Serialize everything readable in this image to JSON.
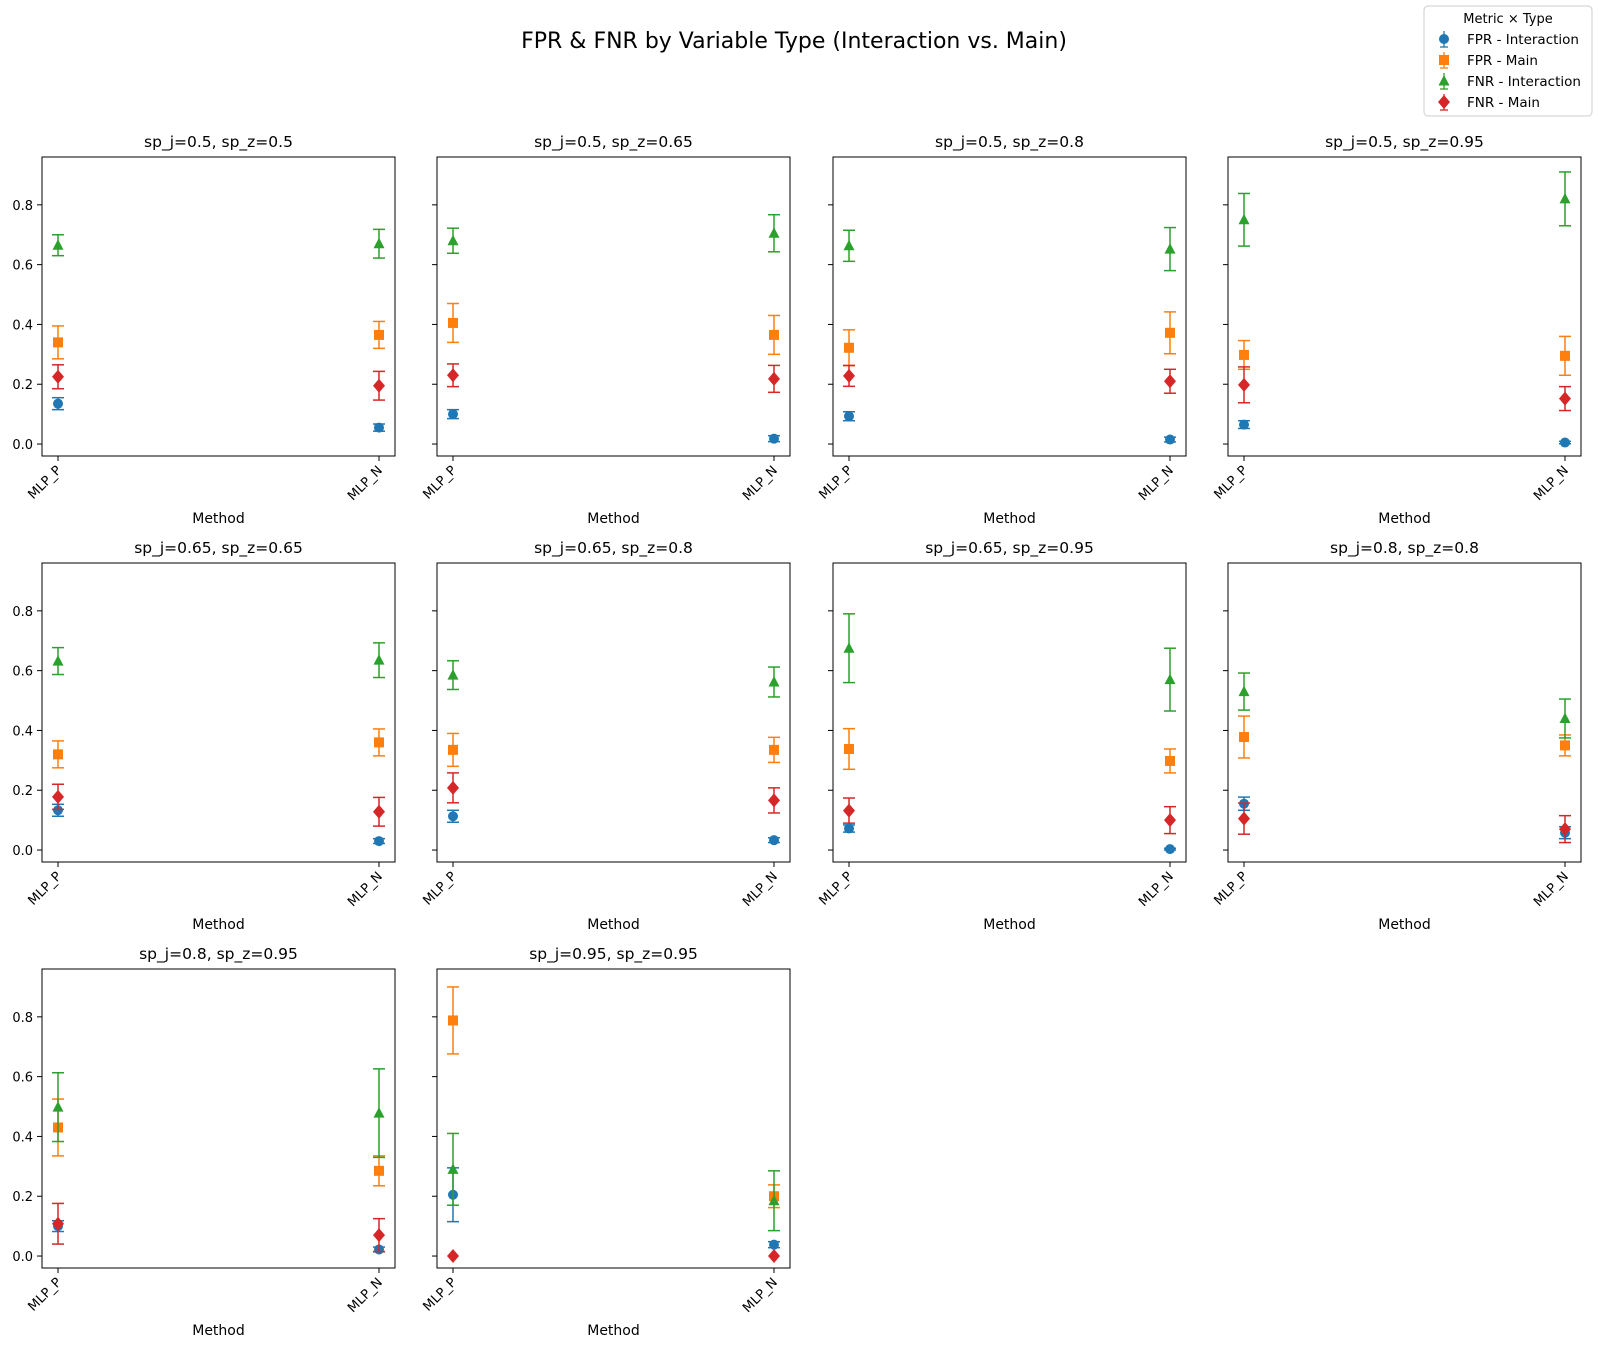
{
  "figure": {
    "title": "FPR & FNR by Variable Type (Interaction vs. Main)",
    "legend": {
      "title": "Metric × Type",
      "placement": "top-right",
      "entries": [
        {
          "label": "FPR - Interaction",
          "color": "#1f77b4",
          "marker": "circle"
        },
        {
          "label": "FPR - Main",
          "color": "#ff7f0e",
          "marker": "square"
        },
        {
          "label": "FNR - Interaction",
          "color": "#2ca02c",
          "marker": "triangle"
        },
        {
          "label": "FNR - Main",
          "color": "#d62728",
          "marker": "diamond"
        }
      ]
    }
  },
  "chart_data": [
    {
      "type": "scatter",
      "title": "sp_j=0.5, sp_z=0.5",
      "xlabel": "Method",
      "categories": [
        "MLP_P",
        "MLP_N"
      ],
      "ylim": [
        -0.04,
        0.96
      ],
      "yticks": [
        0.0,
        0.2,
        0.4,
        0.6,
        0.8
      ],
      "series": [
        {
          "name": "FPR - Interaction",
          "values": [
            0.135,
            0.055
          ],
          "err": [
            0.02,
            0.012
          ]
        },
        {
          "name": "FPR - Main",
          "values": [
            0.34,
            0.365
          ],
          "err": [
            0.055,
            0.045
          ]
        },
        {
          "name": "FNR - Interaction",
          "values": [
            0.665,
            0.67
          ],
          "err": [
            0.035,
            0.048
          ]
        },
        {
          "name": "FNR - Main",
          "values": [
            0.225,
            0.195
          ],
          "err": [
            0.04,
            0.048
          ]
        }
      ]
    },
    {
      "type": "scatter",
      "title": "sp_j=0.5, sp_z=0.65",
      "xlabel": "Method",
      "categories": [
        "MLP_P",
        "MLP_N"
      ],
      "ylim": [
        -0.04,
        0.96
      ],
      "yticks": [
        0.0,
        0.2,
        0.4,
        0.6,
        0.8
      ],
      "series": [
        {
          "name": "FPR - Interaction",
          "values": [
            0.1,
            0.018
          ],
          "err": [
            0.015,
            0.01
          ]
        },
        {
          "name": "FPR - Main",
          "values": [
            0.405,
            0.365
          ],
          "err": [
            0.065,
            0.065
          ]
        },
        {
          "name": "FNR - Interaction",
          "values": [
            0.68,
            0.705
          ],
          "err": [
            0.042,
            0.062
          ]
        },
        {
          "name": "FNR - Main",
          "values": [
            0.23,
            0.218
          ],
          "err": [
            0.038,
            0.045
          ]
        }
      ]
    },
    {
      "type": "scatter",
      "title": "sp_j=0.5, sp_z=0.8",
      "xlabel": "Method",
      "categories": [
        "MLP_P",
        "MLP_N"
      ],
      "ylim": [
        -0.04,
        0.96
      ],
      "yticks": [
        0.0,
        0.2,
        0.4,
        0.6,
        0.8
      ],
      "series": [
        {
          "name": "FPR - Interaction",
          "values": [
            0.093,
            0.015
          ],
          "err": [
            0.015,
            0.008
          ]
        },
        {
          "name": "FPR - Main",
          "values": [
            0.322,
            0.372
          ],
          "err": [
            0.06,
            0.07
          ]
        },
        {
          "name": "FNR - Interaction",
          "values": [
            0.663,
            0.652
          ],
          "err": [
            0.052,
            0.072
          ]
        },
        {
          "name": "FNR - Main",
          "values": [
            0.228,
            0.21
          ],
          "err": [
            0.035,
            0.04
          ]
        }
      ]
    },
    {
      "type": "scatter",
      "title": "sp_j=0.5, sp_z=0.95",
      "xlabel": "Method",
      "categories": [
        "MLP_P",
        "MLP_N"
      ],
      "ylim": [
        -0.04,
        0.96
      ],
      "yticks": [
        0.0,
        0.2,
        0.4,
        0.6,
        0.8
      ],
      "series": [
        {
          "name": "FPR - Interaction",
          "values": [
            0.065,
            0.005
          ],
          "err": [
            0.013,
            0.004
          ]
        },
        {
          "name": "FPR - Main",
          "values": [
            0.298,
            0.295
          ],
          "err": [
            0.048,
            0.065
          ]
        },
        {
          "name": "FNR - Interaction",
          "values": [
            0.75,
            0.82
          ],
          "err": [
            0.088,
            0.09
          ]
        },
        {
          "name": "FNR - Main",
          "values": [
            0.198,
            0.152
          ],
          "err": [
            0.06,
            0.04
          ]
        }
      ]
    },
    {
      "type": "scatter",
      "title": "sp_j=0.65, sp_z=0.65",
      "xlabel": "Method",
      "categories": [
        "MLP_P",
        "MLP_N"
      ],
      "ylim": [
        -0.04,
        0.96
      ],
      "yticks": [
        0.0,
        0.2,
        0.4,
        0.6,
        0.8
      ],
      "series": [
        {
          "name": "FPR - Interaction",
          "values": [
            0.133,
            0.03
          ],
          "err": [
            0.02,
            0.008
          ]
        },
        {
          "name": "FPR - Main",
          "values": [
            0.32,
            0.36
          ],
          "err": [
            0.045,
            0.045
          ]
        },
        {
          "name": "FNR - Interaction",
          "values": [
            0.632,
            0.635
          ],
          "err": [
            0.045,
            0.058
          ]
        },
        {
          "name": "FNR - Main",
          "values": [
            0.178,
            0.128
          ],
          "err": [
            0.042,
            0.048
          ]
        }
      ]
    },
    {
      "type": "scatter",
      "title": "sp_j=0.65, sp_z=0.8",
      "xlabel": "Method",
      "categories": [
        "MLP_P",
        "MLP_N"
      ],
      "ylim": [
        -0.04,
        0.96
      ],
      "yticks": [
        0.0,
        0.2,
        0.4,
        0.6,
        0.8
      ],
      "series": [
        {
          "name": "FPR - Interaction",
          "values": [
            0.113,
            0.033
          ],
          "err": [
            0.02,
            0.008
          ]
        },
        {
          "name": "FPR - Main",
          "values": [
            0.335,
            0.335
          ],
          "err": [
            0.055,
            0.042
          ]
        },
        {
          "name": "FNR - Interaction",
          "values": [
            0.585,
            0.562
          ],
          "err": [
            0.048,
            0.05
          ]
        },
        {
          "name": "FNR - Main",
          "values": [
            0.208,
            0.166
          ],
          "err": [
            0.05,
            0.042
          ]
        }
      ]
    },
    {
      "type": "scatter",
      "title": "sp_j=0.65, sp_z=0.95",
      "xlabel": "Method",
      "categories": [
        "MLP_P",
        "MLP_N"
      ],
      "ylim": [
        -0.04,
        0.96
      ],
      "yticks": [
        0.0,
        0.2,
        0.4,
        0.6,
        0.8
      ],
      "series": [
        {
          "name": "FPR - Interaction",
          "values": [
            0.072,
            0.003
          ],
          "err": [
            0.012,
            0.003
          ]
        },
        {
          "name": "FPR - Main",
          "values": [
            0.338,
            0.298
          ],
          "err": [
            0.068,
            0.04
          ]
        },
        {
          "name": "FNR - Interaction",
          "values": [
            0.675,
            0.57
          ],
          "err": [
            0.115,
            0.105
          ]
        },
        {
          "name": "FNR - Main",
          "values": [
            0.132,
            0.1
          ],
          "err": [
            0.042,
            0.045
          ]
        }
      ]
    },
    {
      "type": "scatter",
      "title": "sp_j=0.8, sp_z=0.8",
      "xlabel": "Method",
      "categories": [
        "MLP_P",
        "MLP_N"
      ],
      "ylim": [
        -0.04,
        0.96
      ],
      "yticks": [
        0.0,
        0.2,
        0.4,
        0.6,
        0.8
      ],
      "series": [
        {
          "name": "FPR - Interaction",
          "values": [
            0.155,
            0.058
          ],
          "err": [
            0.022,
            0.02
          ]
        },
        {
          "name": "FPR - Main",
          "values": [
            0.378,
            0.35
          ],
          "err": [
            0.07,
            0.035
          ]
        },
        {
          "name": "FNR - Interaction",
          "values": [
            0.53,
            0.44
          ],
          "err": [
            0.062,
            0.065
          ]
        },
        {
          "name": "FNR - Main",
          "values": [
            0.105,
            0.07
          ],
          "err": [
            0.052,
            0.045
          ]
        }
      ]
    },
    {
      "type": "scatter",
      "title": "sp_j=0.8, sp_z=0.95",
      "xlabel": "Method",
      "categories": [
        "MLP_P",
        "MLP_N"
      ],
      "ylim": [
        -0.04,
        0.96
      ],
      "yticks": [
        0.0,
        0.2,
        0.4,
        0.6,
        0.8
      ],
      "series": [
        {
          "name": "FPR - Interaction",
          "values": [
            0.1,
            0.022
          ],
          "err": [
            0.018,
            0.008
          ]
        },
        {
          "name": "FPR - Main",
          "values": [
            0.43,
            0.285
          ],
          "err": [
            0.095,
            0.05
          ]
        },
        {
          "name": "FNR - Interaction",
          "values": [
            0.498,
            0.478
          ],
          "err": [
            0.115,
            0.148
          ]
        },
        {
          "name": "FNR - Main",
          "values": [
            0.108,
            0.07
          ],
          "err": [
            0.068,
            0.055
          ]
        }
      ]
    },
    {
      "type": "scatter",
      "title": "sp_j=0.95, sp_z=0.95",
      "xlabel": "Method",
      "categories": [
        "MLP_P",
        "MLP_N"
      ],
      "ylim": [
        -0.04,
        0.96
      ],
      "yticks": [
        0.0,
        0.2,
        0.4,
        0.6,
        0.8
      ],
      "series": [
        {
          "name": "FPR - Interaction",
          "values": [
            0.205,
            0.038
          ],
          "err": [
            0.09,
            0.01
          ]
        },
        {
          "name": "FPR - Main",
          "values": [
            0.788,
            0.2
          ],
          "err": [
            0.112,
            0.038
          ]
        },
        {
          "name": "FNR - Interaction",
          "values": [
            0.29,
            0.185
          ],
          "err": [
            0.12,
            0.1
          ]
        },
        {
          "name": "FNR - Main",
          "values": [
            0.0,
            0.0
          ],
          "err": [
            0.0,
            0.0
          ]
        }
      ]
    }
  ]
}
